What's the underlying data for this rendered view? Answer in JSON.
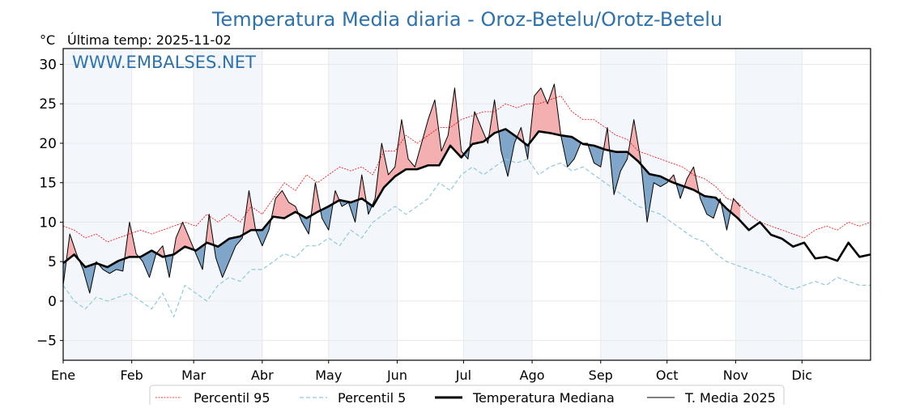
{
  "chart_data": {
    "type": "line",
    "title": "Temperatura Media diaria - Oroz-Betelu/Orotz-Betelu",
    "unit_label": "°C",
    "subtitle": "Última temp: 2025-11-02",
    "watermark": "WWW.EMBALSES.NET",
    "xlabel": "",
    "ylabel": "°C",
    "xlim": [
      0,
      365
    ],
    "ylim": [
      -7.5,
      32
    ],
    "grid": true,
    "legend_position": "bottom-center",
    "y_ticks": [
      -5,
      0,
      5,
      10,
      15,
      20,
      25,
      30
    ],
    "x_ticks": [
      {
        "day": 0,
        "label": "Ene"
      },
      {
        "day": 31,
        "label": "Feb"
      },
      {
        "day": 59,
        "label": "Mar"
      },
      {
        "day": 90,
        "label": "Abr"
      },
      {
        "day": 120,
        "label": "May"
      },
      {
        "day": 151,
        "label": "Jun"
      },
      {
        "day": 181,
        "label": "Jul"
      },
      {
        "day": 212,
        "label": "Ago"
      },
      {
        "day": 243,
        "label": "Sep"
      },
      {
        "day": 273,
        "label": "Oct"
      },
      {
        "day": 304,
        "label": "Nov"
      },
      {
        "day": 334,
        "label": "Dic"
      }
    ],
    "shaded_month_bands": [
      [
        0,
        31
      ],
      [
        59,
        90
      ],
      [
        120,
        151
      ],
      [
        181,
        212
      ],
      [
        243,
        273
      ],
      [
        304,
        334
      ]
    ],
    "colors": {
      "title": "#2e72ad",
      "p95": "#ff0000",
      "p5": "#8ec9dc",
      "median": "#000000",
      "year": "#000000",
      "above_fill": "#f4b0b0",
      "below_fill": "#7fa6c9",
      "band": "#f3f7fb",
      "grid": "#e8e8e8"
    },
    "series": [
      {
        "key": "p95",
        "name": "Percentil 95",
        "day_step": 5,
        "values": [
          9.5,
          9,
          8,
          8.5,
          7.5,
          8,
          8.5,
          9,
          8.5,
          9,
          9.5,
          10,
          9.5,
          11,
          10,
          11,
          10,
          12,
          11,
          13,
          15,
          14,
          16,
          15,
          16,
          17,
          16.5,
          17,
          16,
          19,
          19,
          21,
          20,
          21,
          22,
          22,
          23,
          23.5,
          24,
          24,
          25,
          24.5,
          25,
          25,
          25.5,
          26,
          24,
          23,
          23,
          22,
          21,
          20.5,
          19,
          18.5,
          18,
          17.5,
          17,
          16,
          15.5,
          14.5,
          13,
          12.5,
          11,
          10,
          9.5,
          9,
          8.5,
          8,
          9,
          9.5,
          9,
          10,
          9.5,
          10
        ]
      },
      {
        "key": "p5",
        "name": "Percentil 5",
        "day_step": 5,
        "values": [
          2,
          0,
          -1,
          0.5,
          0,
          0.5,
          1,
          0,
          -1,
          1,
          -2,
          2,
          1,
          0,
          2,
          3,
          2.5,
          4,
          4,
          5,
          6,
          5.5,
          7,
          7,
          8,
          7,
          9,
          8,
          10,
          11,
          12,
          11,
          12,
          13,
          15,
          14,
          16,
          17,
          16,
          17,
          18,
          17.5,
          18,
          16,
          17,
          17.5,
          16.5,
          17,
          16,
          15,
          14,
          13,
          12,
          11.5,
          11,
          10,
          9,
          8,
          7.5,
          6,
          5,
          4.5,
          4,
          3.5,
          3,
          2,
          1.5,
          2,
          2.5,
          2,
          3,
          2.5,
          2,
          2
        ]
      },
      {
        "key": "median",
        "name": "Temperatura Mediana",
        "day_step": 5,
        "values": [
          4.8,
          5.9,
          4.3,
          4.8,
          4.3,
          5.1,
          5.6,
          5.6,
          6.4,
          5.6,
          5.9,
          6.9,
          6.4,
          7.4,
          6.9,
          7.9,
          8.2,
          9,
          9,
          10.7,
          10.5,
          11.3,
          10.5,
          11.3,
          12,
          12.8,
          12.5,
          13,
          12,
          14.4,
          15.8,
          16.7,
          16.7,
          17.2,
          17.2,
          19.7,
          18.2,
          19.9,
          20.2,
          21.3,
          21.8,
          20.8,
          19.7,
          21.5,
          21.3,
          21,
          20.8,
          19.9,
          19.7,
          19.2,
          18.9,
          18.9,
          17.7,
          16.1,
          15.8,
          15.1,
          14.6,
          14.1,
          13.3,
          13.1,
          11.7,
          10.5,
          9,
          10,
          8.4,
          7.9,
          6.9,
          7.4,
          5.4,
          5.6,
          5.1,
          7.4,
          5.6,
          5.9
        ]
      },
      {
        "key": "year",
        "name": "T. Media 2025",
        "day_step": 3,
        "values": [
          2,
          8.5,
          6,
          4,
          1,
          5,
          4,
          3.5,
          4,
          3.8,
          10,
          6,
          5,
          3,
          6,
          7,
          3,
          8,
          10,
          8,
          6,
          4,
          11,
          5.5,
          3,
          5,
          7,
          8,
          14,
          9,
          7,
          9,
          13,
          14,
          12.5,
          12,
          10,
          8.5,
          15,
          10.5,
          9,
          14,
          12,
          12.5,
          10,
          16,
          11,
          13,
          20,
          16,
          17,
          23,
          18,
          17,
          20,
          23,
          25.5,
          19,
          21,
          27,
          19,
          18,
          24,
          22,
          20,
          25.5,
          19,
          15.8,
          20,
          22,
          18,
          26,
          27,
          25,
          27.5,
          21,
          17,
          18,
          20,
          20,
          17.5,
          17,
          22,
          13.5,
          16.5,
          18,
          23,
          18,
          10,
          15,
          14.5,
          15,
          16,
          13,
          15.5,
          17,
          13,
          11,
          10.5,
          13,
          9,
          13,
          12
        ]
      }
    ]
  }
}
